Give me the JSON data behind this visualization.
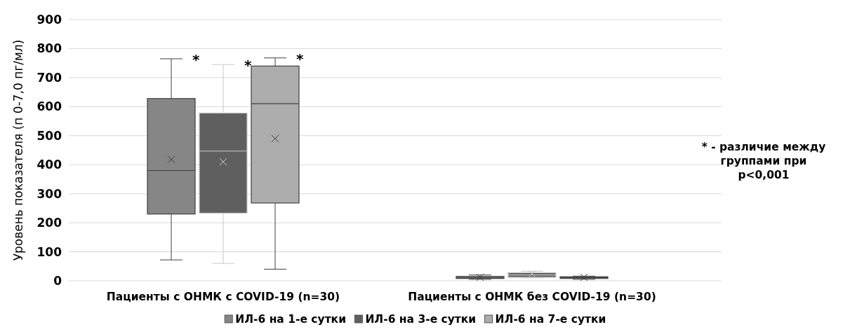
{
  "chart_data": {
    "type": "box",
    "ylabel": "Уровень показателя (п 0-7,0 пг/мл)",
    "categories": [
      "Пациенты с ОНМК с COVID-19 (n=30)",
      "Пациенты с ОНМК без COVID-19 (n=30)"
    ],
    "series": [
      {
        "name": "ИЛ-6 на 1-е сутки",
        "color": "#868686",
        "boxes": [
          {
            "low": 72,
            "q1": 230,
            "median": 380,
            "q3": 628,
            "high": 765,
            "mean": 418
          },
          {
            "low": 5,
            "q1": 8,
            "median": 10,
            "q3": 15,
            "high": 20,
            "mean": 12
          }
        ]
      },
      {
        "name": "ИЛ-6 на 3-е сутки",
        "color": "#5f5f5f",
        "boxes": [
          {
            "low": 60,
            "q1": 233,
            "median": 447,
            "q3": 578,
            "high": 745,
            "mean": 410
          },
          {
            "low": 10,
            "q1": 12,
            "median": 20,
            "q3": 28,
            "high": 33,
            "mean": 24
          }
        ]
      },
      {
        "name": "ИЛ-6 на 7-е сутки",
        "color": "#adadad",
        "boxes": [
          {
            "low": 40,
            "q1": 268,
            "median": 610,
            "q3": 740,
            "high": 768,
            "mean": 490
          },
          {
            "low": 5,
            "q1": 8,
            "median": 11,
            "q3": 14,
            "high": 16,
            "mean": 12
          }
        ]
      }
    ],
    "ylim": [
      0,
      900
    ],
    "yticks": [
      0,
      100,
      200,
      300,
      400,
      500,
      600,
      700,
      800,
      900
    ],
    "grid": "y",
    "legend": "bottom",
    "annotations": [
      "*",
      "*",
      "*",
      "* - различие между группами при p<0,001"
    ]
  }
}
